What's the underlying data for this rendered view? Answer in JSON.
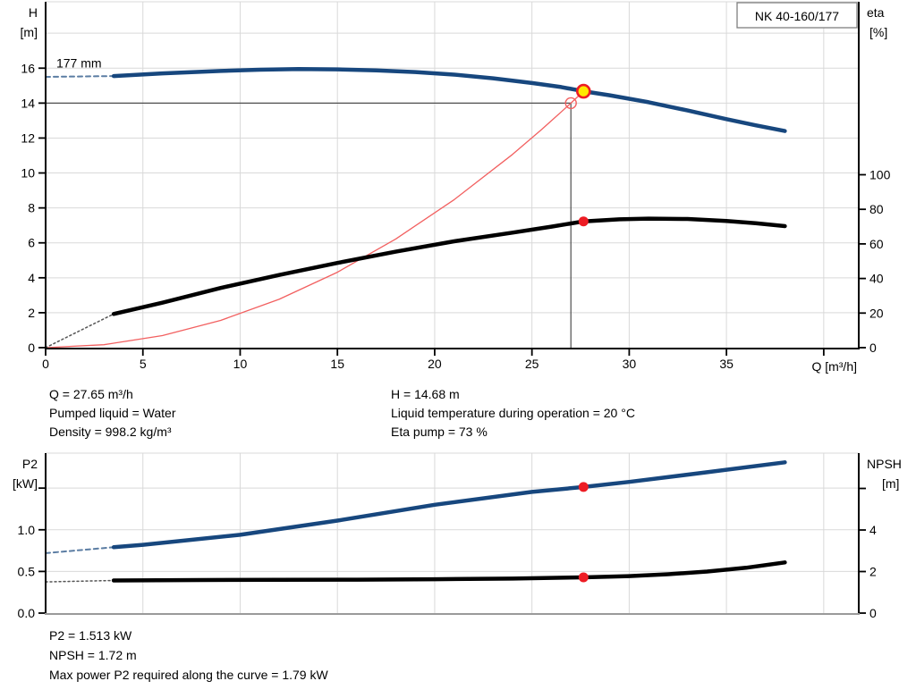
{
  "pump_label": "NK 40-160/177",
  "info_top": {
    "left": [
      "Q = 27.65 m³/h",
      "Pumped liquid = Water",
      "Density = 998.2 kg/m³"
    ],
    "right": [
      "H = 14.68 m",
      "Liquid temperature during operation = 20 °C",
      "Eta pump = 73 %"
    ]
  },
  "info_bottom": [
    "P2 = 1.513 kW",
    "NPSH = 1.72 m",
    "Max power P2 required along the curve = 1.79 kW"
  ],
  "colors": {
    "curve_blue": "#17477e",
    "curve_blue_dash": "#5b7da3",
    "curve_black": "#000000",
    "black_dash": "#555555",
    "system_red": "#f26060",
    "marker_red": "#ed1c24",
    "marker_yellow": "#ffe800",
    "duty_line": "#4d4d4d",
    "grid": "#d9d9d9",
    "axis": "#000000",
    "axis_gray": "#9a9a9a",
    "box_border": "#7f7f7f"
  },
  "chart_data": [
    {
      "name": "qh-eta-chart",
      "type": "line",
      "title_box": "NK 40-160/177",
      "x_axis": {
        "label": "Q [m³/h]",
        "range": [
          0,
          41.8
        ],
        "axis_color": "#000000",
        "ticks": [
          {
            "v": 0,
            "t": "0"
          },
          {
            "v": 5,
            "t": "5"
          },
          {
            "v": 10,
            "t": "10"
          },
          {
            "v": 15,
            "t": "15"
          },
          {
            "v": 20,
            "t": "20"
          },
          {
            "v": 25,
            "t": "25"
          },
          {
            "v": 30,
            "t": "30"
          },
          {
            "v": 35,
            "t": "35"
          },
          {
            "v": 40,
            "t": ""
          }
        ],
        "grid_at": [
          5,
          10,
          15,
          20,
          25,
          30,
          35,
          40
        ]
      },
      "y_left": {
        "label_lines": [
          "H",
          "[m]"
        ],
        "range": [
          0,
          19.8
        ],
        "ticks": [
          {
            "v": 0,
            "t": "0"
          },
          {
            "v": 2,
            "t": "2"
          },
          {
            "v": 4,
            "t": "4"
          },
          {
            "v": 6,
            "t": "6"
          },
          {
            "v": 8,
            "t": "8"
          },
          {
            "v": 10,
            "t": "10"
          },
          {
            "v": 12,
            "t": "12"
          },
          {
            "v": 14,
            "t": "14"
          },
          {
            "v": 16,
            "t": "16"
          }
        ],
        "grid_at": [
          2,
          4,
          6,
          8,
          10,
          12,
          14,
          16,
          18
        ]
      },
      "y_right": {
        "label_lines": [
          "eta",
          "[%]"
        ],
        "label_dx": [
          0,
          3
        ],
        "range": [
          0,
          200
        ],
        "ticks": [
          {
            "v": 0,
            "t": "0"
          },
          {
            "v": 20,
            "t": "20"
          },
          {
            "v": 40,
            "t": "40"
          },
          {
            "v": 60,
            "t": "60"
          },
          {
            "v": 80,
            "t": "80"
          },
          {
            "v": 100,
            "t": "100"
          }
        ],
        "grid_at": []
      },
      "annotations": [
        {
          "name": "impeller-size-label",
          "text": "177 mm",
          "q": 0.55,
          "v": 16.05,
          "anchor": "start"
        }
      ],
      "series": [
        {
          "name": "duty-h-line",
          "axis": "left",
          "color": "#4d4d4d",
          "width": 1.2,
          "points": [
            [
              0,
              14
            ],
            [
              27,
              14
            ]
          ]
        },
        {
          "name": "duty-v-line",
          "axis": "left",
          "color": "#4d4d4d",
          "width": 1.2,
          "points": [
            [
              27,
              14
            ],
            [
              27,
              0
            ]
          ]
        },
        {
          "name": "system-curve",
          "axis": "left",
          "color": "#f26060",
          "width": 1.3,
          "points": [
            [
              0,
              0
            ],
            [
              3,
              0.17
            ],
            [
              6,
              0.69
            ],
            [
              9,
              1.56
            ],
            [
              12,
              2.77
            ],
            [
              15,
              4.32
            ],
            [
              18,
              6.22
            ],
            [
              21,
              8.47
            ],
            [
              24,
              11.06
            ],
            [
              25.5,
              12.49
            ],
            [
              26.5,
              13.49
            ],
            [
              27,
              14.0
            ],
            [
              27.65,
              14.68
            ]
          ]
        },
        {
          "name": "head-curve-leadin",
          "axis": "left",
          "color": "#5b7da3",
          "width": 2,
          "dash": "5 4",
          "points": [
            [
              0,
              15.5
            ],
            [
              3.5,
              15.55
            ]
          ]
        },
        {
          "name": "eta-curve-leadin",
          "axis": "right",
          "color": "#555555",
          "width": 1.5,
          "dash": "2 3",
          "points": [
            [
              0,
              0
            ],
            [
              3.5,
              19.5
            ]
          ]
        },
        {
          "name": "eta-curve",
          "axis": "right",
          "color": "#000000",
          "width": 4.5,
          "points": [
            [
              3.5,
              19.5
            ],
            [
              6,
              26
            ],
            [
              9,
              34.5
            ],
            [
              12,
              42
            ],
            [
              15,
              49
            ],
            [
              18,
              55.5
            ],
            [
              21,
              61.5
            ],
            [
              24,
              66.5
            ],
            [
              26,
              70
            ],
            [
              27.65,
              73
            ],
            [
              29.5,
              74.2
            ],
            [
              31,
              74.6
            ],
            [
              33,
              74.4
            ],
            [
              35,
              73.3
            ],
            [
              36.5,
              72
            ],
            [
              38,
              70.3
            ]
          ]
        },
        {
          "name": "head-curve-177mm",
          "axis": "left",
          "color": "#17477e",
          "width": 4.5,
          "points": [
            [
              3.5,
              15.55
            ],
            [
              6,
              15.7
            ],
            [
              9,
              15.84
            ],
            [
              11,
              15.91
            ],
            [
              13,
              15.95
            ],
            [
              15,
              15.93
            ],
            [
              17,
              15.87
            ],
            [
              19,
              15.78
            ],
            [
              21,
              15.63
            ],
            [
              23,
              15.42
            ],
            [
              25,
              15.15
            ],
            [
              26.5,
              14.92
            ],
            [
              27.65,
              14.68
            ],
            [
              29,
              14.45
            ],
            [
              31,
              14.05
            ],
            [
              33,
              13.58
            ],
            [
              35,
              13.08
            ],
            [
              36.5,
              12.73
            ],
            [
              38,
              12.4
            ]
          ]
        }
      ],
      "markers": [
        {
          "name": "duty-point-requested",
          "axis": "left",
          "q": 27,
          "v": 14,
          "r": 6,
          "fill": "none",
          "stroke": "#f26060",
          "sw": 1.4,
          "interactable": "false"
        },
        {
          "name": "eta-duty-point",
          "axis": "right",
          "q": 27.65,
          "v": 73,
          "r": 5.5,
          "fill": "#ed1c24",
          "stroke": "none",
          "sw": 0,
          "interactable": "false"
        },
        {
          "name": "duty-point-actual",
          "axis": "left",
          "q": 27.65,
          "v": 14.68,
          "r": 7,
          "fill": "#ffe800",
          "stroke": "#ed1c24",
          "sw": 2.6,
          "interactable": "true"
        }
      ]
    },
    {
      "name": "p2-npsh-chart",
      "type": "line",
      "x_axis": {
        "label": "",
        "range": [
          0,
          41.8
        ],
        "axis_color": "#9a9a9a",
        "ticks": [],
        "grid_at": [
          5,
          10,
          15,
          20,
          25,
          30,
          35,
          40
        ]
      },
      "y_left": {
        "label_lines": [
          "P2",
          "[kW]"
        ],
        "range": [
          0,
          1.92
        ],
        "ticks": [
          {
            "v": 0,
            "t": "0.0"
          },
          {
            "v": 0.5,
            "t": "0.5"
          },
          {
            "v": 1.0,
            "t": "1.0"
          },
          {
            "v": 1.5,
            "t": ""
          }
        ],
        "grid_at": [
          0.5,
          1.0,
          1.5
        ]
      },
      "y_right": {
        "label_lines": [
          "NPSH",
          "[m]"
        ],
        "label_dx": [
          0,
          17
        ],
        "range": [
          0,
          7.7
        ],
        "ticks": [
          {
            "v": 0,
            "t": "0"
          },
          {
            "v": 2,
            "t": "2"
          },
          {
            "v": 4,
            "t": "4"
          },
          {
            "v": 6,
            "t": ""
          }
        ],
        "grid_at": []
      },
      "annotations": [],
      "series": [
        {
          "name": "p2-curve-leadin",
          "axis": "left",
          "color": "#5b7da3",
          "width": 2,
          "dash": "5 4",
          "points": [
            [
              0,
              0.72
            ],
            [
              3.5,
              0.79
            ]
          ]
        },
        {
          "name": "npsh-curve-leadin",
          "axis": "right",
          "color": "#555555",
          "width": 1.5,
          "dash": "2 3",
          "points": [
            [
              0,
              1.5
            ],
            [
              3.5,
              1.57
            ]
          ]
        },
        {
          "name": "p2-curve",
          "axis": "left",
          "color": "#17477e",
          "width": 4.5,
          "points": [
            [
              3.5,
              0.79
            ],
            [
              5,
              0.82
            ],
            [
              10,
              0.94
            ],
            [
              15,
              1.11
            ],
            [
              20,
              1.3
            ],
            [
              25,
              1.455
            ],
            [
              27.65,
              1.513
            ],
            [
              30,
              1.575
            ],
            [
              34,
              1.69
            ],
            [
              38,
              1.81
            ]
          ]
        },
        {
          "name": "npsh-curve",
          "axis": "right",
          "color": "#000000",
          "width": 4.5,
          "points": [
            [
              3.5,
              1.57
            ],
            [
              8,
              1.59
            ],
            [
              12,
              1.6
            ],
            [
              16,
              1.61
            ],
            [
              20,
              1.63
            ],
            [
              24,
              1.66
            ],
            [
              27.65,
              1.72
            ],
            [
              30,
              1.78
            ],
            [
              32,
              1.87
            ],
            [
              34,
              2.0
            ],
            [
              36,
              2.18
            ],
            [
              38,
              2.44
            ]
          ]
        }
      ],
      "markers": [
        {
          "name": "p2-duty-point",
          "axis": "left",
          "q": 27.65,
          "v": 1.513,
          "r": 5.5,
          "fill": "#ed1c24",
          "stroke": "none",
          "sw": 0,
          "interactable": "false"
        },
        {
          "name": "npsh-duty-point",
          "axis": "right",
          "q": 27.65,
          "v": 1.72,
          "r": 5.5,
          "fill": "#ed1c24",
          "stroke": "none",
          "sw": 0,
          "interactable": "false"
        }
      ]
    }
  ]
}
